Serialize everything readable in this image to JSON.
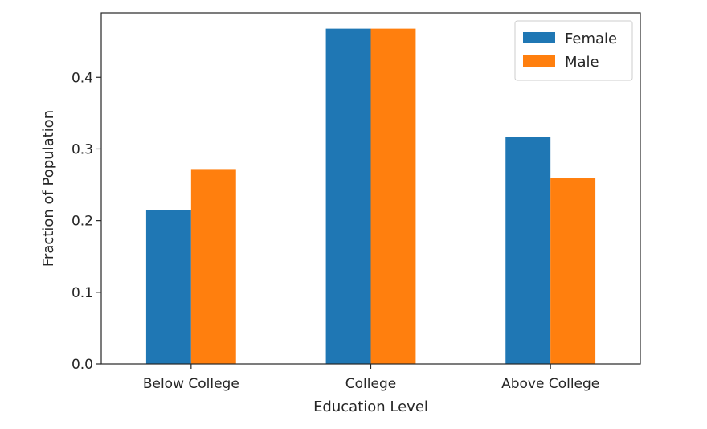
{
  "chart_data": {
    "type": "bar",
    "title": "",
    "xlabel": "Education Level",
    "ylabel": "Fraction of Population",
    "categories": [
      "Below College",
      "College",
      "Above College"
    ],
    "series": [
      {
        "name": "Female",
        "color": "#1f77b4",
        "values": [
          0.215,
          0.468,
          0.317
        ]
      },
      {
        "name": "Male",
        "color": "#ff7f0e",
        "values": [
          0.272,
          0.468,
          0.259
        ]
      }
    ],
    "ylim": [
      0,
      0.49
    ],
    "yticks": [
      0.0,
      0.1,
      0.2,
      0.3,
      0.4
    ],
    "ytick_labels": [
      "0.0",
      "0.1",
      "0.2",
      "0.3",
      "0.4"
    ],
    "legend": {
      "position": "top-right"
    },
    "grid": false
  }
}
